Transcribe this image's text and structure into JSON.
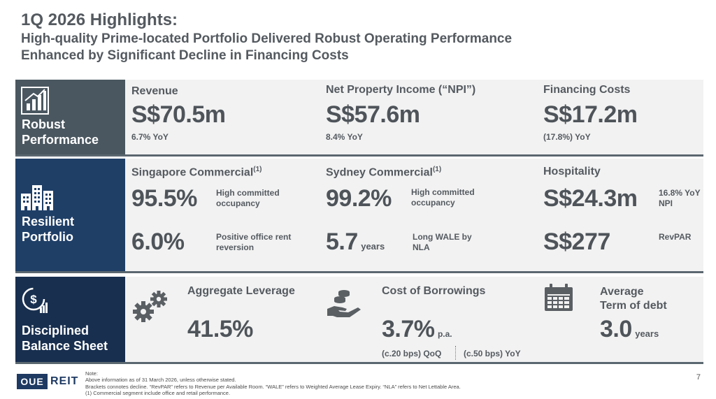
{
  "header": {
    "title": "1Q 2026 Highlights:",
    "subtitle_1": "High-quality Prime-located Portfolio Delivered Robust Operating Performance",
    "subtitle_2": "Enhanced by Significant Decline in Financing Costs"
  },
  "robust": {
    "label_1": "Robust",
    "label_2": "Performance",
    "icon": "bar-chart-icon",
    "revenue": {
      "header": "Revenue",
      "value": "S$70.5m",
      "change": "6.7% YoY"
    },
    "npi": {
      "header": "Net Property Income (“NPI”)",
      "value": "S$57.6m",
      "change": "8.4% YoY"
    },
    "financing": {
      "header": "Financing Costs",
      "value": "S$17.2m",
      "change": "(17.8%) YoY"
    }
  },
  "resilient": {
    "label_1": "Resilient",
    "label_2": "Portfolio",
    "icon": "buildings-icon",
    "sg": {
      "header": "Singapore Commercial",
      "sup": "(1)",
      "occ_value": "95.5%",
      "occ_note_1": "High committed",
      "occ_note_2": "occupancy",
      "rent_value": "6.0%",
      "rent_note_1": "Positive office rent",
      "rent_note_2": "reversion"
    },
    "syd": {
      "header": "Sydney Commercial",
      "sup": "(1)",
      "occ_value": "99.2%",
      "occ_note_1": "High committed",
      "occ_note_2": "occupancy",
      "wale_value": "5.7",
      "wale_unit": "years",
      "wale_note_1": "Long WALE by",
      "wale_note_2": "NLA"
    },
    "hosp": {
      "header": "Hospitality",
      "npi_value": "S$24.3m",
      "npi_note_1": "16.8% YoY",
      "npi_note_2": "NPI",
      "revpar_value": "S$277",
      "revpar_note": "RevPAR"
    }
  },
  "balance": {
    "label_1": "Disciplined",
    "label_2": "Balance Sheet",
    "icon": "dollar-chart-icon",
    "leverage": {
      "icon": "gears-icon",
      "header": "Aggregate Leverage",
      "value": "41.5%"
    },
    "borrow": {
      "icon": "hand-coins-icon",
      "header": "Cost of Borrowings",
      "value": "3.7%",
      "unit": "p.a.",
      "qoq": "(c.20 bps) QoQ",
      "yoy": "(c.50 bps) YoY"
    },
    "term": {
      "icon": "calendar-icon",
      "header_1": "Average",
      "header_2": "Term of debt",
      "value": "3.0",
      "unit": "years"
    }
  },
  "footer": {
    "logo_box": "OUE",
    "logo_text": "REIT",
    "note_title": "Note:",
    "note_1": "Above information as of 31 March 2026, unless otherwise stated.",
    "note_2": "Brackets connotes decline. “RevPAR” refers to Revenue per Available Room. “WALE” refers to Weighted Average Lease Expiry. “NLA” refers to Net Lettable Area.",
    "note_3": "(1) Commercial segment include office and retail performance.",
    "page": "7"
  }
}
